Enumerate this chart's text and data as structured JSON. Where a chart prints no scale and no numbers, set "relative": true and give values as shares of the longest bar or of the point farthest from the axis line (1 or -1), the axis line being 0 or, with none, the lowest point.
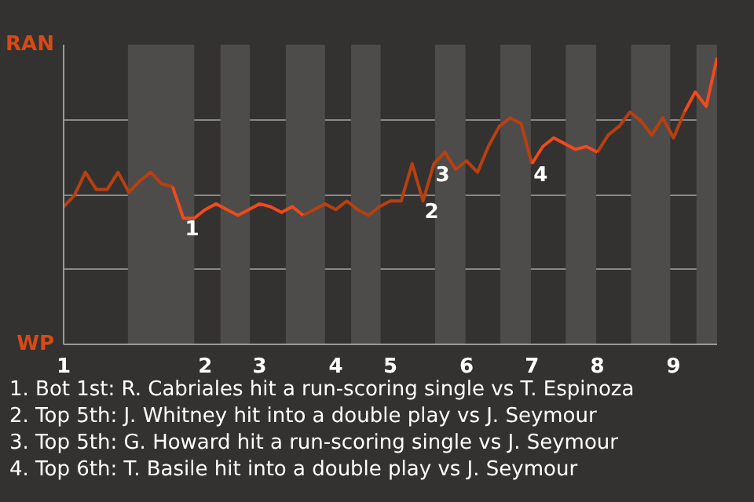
{
  "chart_data": {
    "type": "line",
    "relative": true,
    "categories": [
      "1",
      null,
      null,
      null,
      null,
      null,
      null,
      null,
      null,
      null,
      null,
      null,
      null,
      "2",
      null,
      null,
      null,
      null,
      "3",
      null,
      null,
      null,
      null,
      null,
      null,
      "4",
      null,
      null,
      null,
      null,
      "5",
      null,
      null,
      null,
      null,
      null,
      null,
      "6",
      null,
      null,
      null,
      null,
      null,
      "7",
      null,
      null,
      null,
      null,
      null,
      "8",
      null,
      null,
      null,
      null,
      null,
      null,
      "9",
      null,
      null,
      null,
      null
    ],
    "grid": "y",
    "marker": "none",
    "line_style": "solid",
    "series": [
      {
        "color": "#b84010",
        "values": [
          0.48,
          0.52,
          0.6,
          0.54,
          0.54,
          0.6,
          0.53,
          0.57,
          0.6,
          0.56,
          0.55,
          null,
          null,
          null,
          null,
          null,
          null,
          null,
          null,
          null,
          null,
          null,
          0.45,
          0.47,
          0.49,
          0.47,
          0.5,
          0.47,
          0.45,
          0.48,
          0.5,
          0.5,
          0.63,
          0.5,
          0.63,
          0.67,
          0.61,
          0.64,
          0.6,
          0.69,
          0.76,
          0.79,
          0.77,
          0.63,
          null,
          null,
          null,
          null,
          null,
          0.67,
          0.73,
          0.76,
          0.81,
          0.78,
          0.73,
          0.79,
          0.72,
          0.81,
          null,
          null,
          null
        ]
      },
      {
        "color": "#f04a1c",
        "values": [
          null,
          null,
          null,
          null,
          null,
          null,
          null,
          null,
          null,
          null,
          0.55,
          0.44,
          0.44,
          0.47,
          0.49,
          0.47,
          0.45,
          0.47,
          0.49,
          0.48,
          0.46,
          0.48,
          0.45,
          null,
          null,
          null,
          null,
          null,
          null,
          null,
          null,
          null,
          null,
          null,
          null,
          null,
          null,
          null,
          null,
          null,
          null,
          null,
          null,
          0.63,
          0.69,
          0.72,
          0.7,
          0.68,
          0.69,
          0.67,
          null,
          null,
          null,
          null,
          null,
          null,
          null,
          0.81,
          0.88,
          0.83,
          1
        ]
      }
    ],
    "annotations": [
      "RAN",
      "WP",
      "1",
      "2",
      "3",
      "4",
      "1. Bot 1st: R. Cabriales hit a run-scoring single vs T. Espinoza",
      "2. Top 5th: J. Whitney hit into a double play vs J. Seymour",
      "3. Top 5th: G. Howard hit a run-scoring single vs J. Seymour",
      "4. Top 6th: T. Basile hit into a double play vs J. Seymour"
    ]
  }
}
